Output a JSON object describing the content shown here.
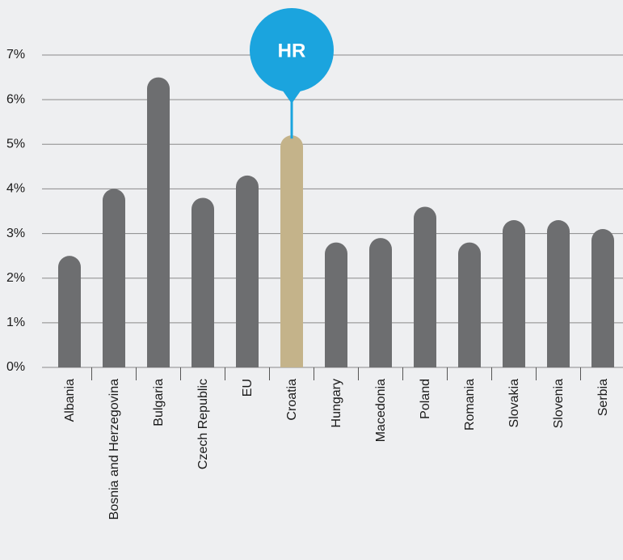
{
  "chart_data": {
    "type": "bar",
    "categories": [
      "Albania",
      "Bosnia and Herzegovina",
      "Bulgaria",
      "Czech Republic",
      "EU",
      "Croatia",
      "Hungary",
      "Macedonia",
      "Poland",
      "Romania",
      "Slovakia",
      "Slovenia",
      "Serbia"
    ],
    "values": [
      2.5,
      4.0,
      6.5,
      3.8,
      4.3,
      5.2,
      2.8,
      2.9,
      3.6,
      2.8,
      3.3,
      3.3,
      3.1
    ],
    "colors": [
      "#6d6e70",
      "#6d6e70",
      "#6d6e70",
      "#6d6e70",
      "#6d6e70",
      "#c4b38a",
      "#6d6e70",
      "#6d6e70",
      "#6d6e70",
      "#6d6e70",
      "#6d6e70",
      "#6d6e70",
      "#6d6e70"
    ],
    "ylim": [
      0,
      7
    ],
    "yticks": [
      {
        "value": 0,
        "label": "0%"
      },
      {
        "value": 1,
        "label": "1%"
      },
      {
        "value": 2,
        "label": "2%"
      },
      {
        "value": 3,
        "label": "3%"
      },
      {
        "value": 4,
        "label": "4%"
      },
      {
        "value": 5,
        "label": "5%"
      },
      {
        "value": 6,
        "label": "6%"
      },
      {
        "value": 7,
        "label": "7%"
      }
    ],
    "grid": true,
    "annotations": [
      {
        "text": "HR",
        "x": "Croatia",
        "color": "#1ba4de"
      }
    ]
  }
}
